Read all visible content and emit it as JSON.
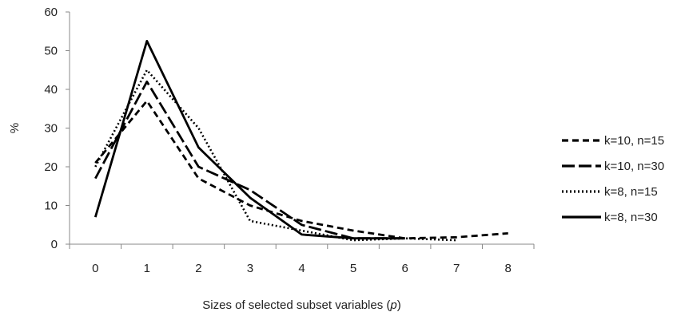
{
  "chart_data": {
    "type": "line",
    "xlabel": "Sizes of selected subset variables (",
    "xlabel_symbol": "p",
    "xlabel_close": ")",
    "ylabel": "%",
    "x": [
      0,
      1,
      2,
      3,
      4,
      5,
      6,
      7,
      8
    ],
    "xlim": [
      0,
      8
    ],
    "ylim": [
      0,
      60
    ],
    "yticks": [
      0,
      10,
      20,
      30,
      40,
      50,
      60
    ],
    "grid": false,
    "legend_position": "right",
    "series": [
      {
        "name": "k=10, n=15",
        "style": "short-dash",
        "values": [
          21,
          37,
          17,
          10,
          6,
          3.5,
          1.5,
          1.8,
          2.8
        ]
      },
      {
        "name": "k=10, n=30",
        "style": "long-dash",
        "values": [
          17,
          42,
          20,
          14,
          5,
          1.5,
          1.5,
          null,
          null
        ]
      },
      {
        "name": "k=8, n=15",
        "style": "dotted",
        "values": [
          20,
          45,
          30,
          6,
          3.5,
          1,
          1.5,
          1,
          null
        ]
      },
      {
        "name": "k=8, n=30",
        "style": "solid",
        "values": [
          7,
          52.5,
          25,
          12,
          2.5,
          1.5,
          1.5,
          null,
          null
        ]
      }
    ],
    "colors": {
      "line": "#000000",
      "axis": "#888888"
    }
  }
}
